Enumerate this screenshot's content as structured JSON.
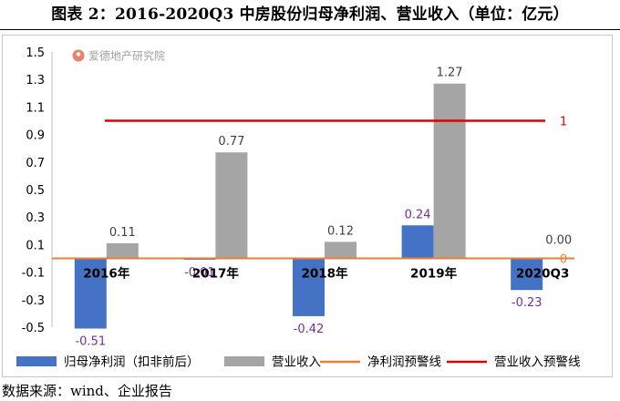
{
  "title": "图表 2：2016-2020Q3 中房股份归母净利润、营业收入（单位：亿元）",
  "watermark": "爱德地产研究院",
  "source": "数据来源：wind、企业报告",
  "colors": {
    "profit": "#4472C4",
    "revenue": "#A5A5A5",
    "profit_warning": "#ED7D31",
    "revenue_warning": "#E00000",
    "watermark_icon": "#E8826E"
  },
  "chart_data": {
    "type": "bar",
    "categories": [
      "2016年",
      "2017年",
      "2018年",
      "2019年",
      "2020Q3"
    ],
    "series": [
      {
        "name": "归母净利润（扣非前后）",
        "values": [
          -0.51,
          -0.01,
          -0.42,
          0.24,
          -0.23
        ],
        "labels": [
          "-0.51",
          "-0.01",
          "-0.42",
          "0.24",
          "-0.23"
        ]
      },
      {
        "name": "营业收入",
        "values": [
          0.11,
          0.77,
          0.12,
          1.27,
          0.0
        ],
        "labels": [
          "0.11",
          "0.77",
          "0.12",
          "1.27",
          "0.00"
        ]
      }
    ],
    "lines": [
      {
        "name": "净利润预警线",
        "value": 0,
        "label": "0"
      },
      {
        "name": "营业收入预警线",
        "value": 1,
        "label": "1"
      }
    ],
    "ylim": [
      -0.5,
      1.5
    ],
    "yticks": [
      "1.5",
      "1.3",
      "1.1",
      "0.9",
      "0.7",
      "0.5",
      "0.3",
      "0.1",
      "-0.1",
      "-0.3",
      "-0.5"
    ],
    "grid": false,
    "legend_position": "bottom"
  }
}
